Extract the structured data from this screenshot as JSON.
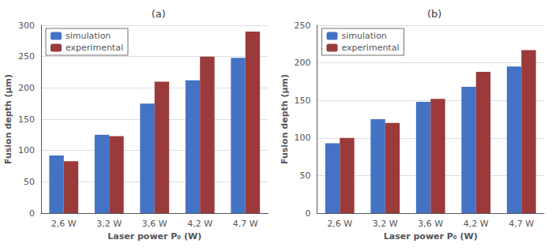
{
  "chart_data": [
    {
      "type": "bar",
      "title": "(a)",
      "xlabel": "Laser power P₀ (W)",
      "ylabel": "Fusion depth (μm)",
      "categories": [
        "2,6 W",
        "3,2 W",
        "3,6 W",
        "4,2 W",
        "4,7 W"
      ],
      "series": [
        {
          "name": "simulation",
          "color": "#4472C4",
          "values": [
            92,
            125,
            175,
            212,
            248
          ]
        },
        {
          "name": "experimental",
          "color": "#9B3A3A",
          "values": [
            83,
            123,
            210,
            250,
            290
          ]
        }
      ],
      "ylim": [
        0,
        300
      ],
      "yticks": [
        0,
        50,
        100,
        150,
        200,
        250,
        300
      ],
      "grid": true,
      "legend": "upper left"
    },
    {
      "type": "bar",
      "title": "(b)",
      "xlabel": "Laser power P₀ (W)",
      "ylabel": "Fusion depth (μm)",
      "categories": [
        "2,6 W",
        "3,2 W",
        "3,6 W",
        "4,2 W",
        "4,7 W"
      ],
      "series": [
        {
          "name": "simulation",
          "color": "#4472C4",
          "values": [
            93,
            125,
            148,
            168,
            195
          ]
        },
        {
          "name": "experimental",
          "color": "#9B3A3A",
          "values": [
            100,
            120,
            152,
            188,
            217
          ]
        }
      ],
      "ylim": [
        0,
        250
      ],
      "yticks": [
        0,
        50,
        100,
        150,
        200,
        250
      ],
      "grid": true,
      "legend": "upper left"
    }
  ]
}
